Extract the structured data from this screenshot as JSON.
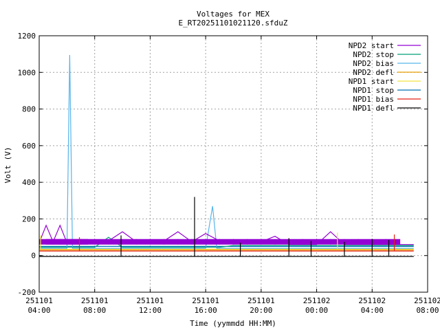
{
  "chart_data": {
    "type": "line",
    "title": "Voltages for MEX",
    "subtitle": "E_RT20251101021120.sfduZ",
    "xlabel": "Time (yymmdd HH:MM)",
    "ylabel": "Volt (V)",
    "ylim": [
      -200,
      1200
    ],
    "yticks": [
      "-200",
      "0",
      "200",
      "400",
      "600",
      "800",
      "1000",
      "1200"
    ],
    "xticks": [
      {
        "date": "251101",
        "time": "04:00"
      },
      {
        "date": "251101",
        "time": "08:00"
      },
      {
        "date": "251101",
        "time": "12:00"
      },
      {
        "date": "251101",
        "time": "16:00"
      },
      {
        "date": "251101",
        "time": "20:00"
      },
      {
        "date": "251102",
        "time": "00:00"
      },
      {
        "date": "251102",
        "time": "04:00"
      },
      {
        "date": "251102",
        "time": "08:00"
      }
    ],
    "xlim_hours": [
      0,
      28
    ],
    "grid": true,
    "legend_position": "top-right",
    "series": [
      {
        "name": "NPD2 start",
        "color": "#9400d3",
        "x_hours": [
          0,
          0.5,
          1,
          1.5,
          2,
          2.5,
          3,
          4,
          5,
          6,
          7,
          8,
          9,
          10,
          11,
          12,
          13,
          14,
          15,
          16,
          17,
          18,
          19,
          20,
          21,
          22,
          23,
          24,
          25,
          26,
          27,
          28,
          29
        ],
        "y": [
          70,
          165,
          75,
          165,
          70,
          75,
          70,
          72,
          80,
          130,
          75,
          75,
          80,
          130,
          75,
          120,
          80,
          75,
          75,
          75,
          105,
          60,
          60,
          60,
          130,
          60,
          60,
          60,
          60,
          60,
          60,
          60,
          60
        ]
      },
      {
        "name": "NPD2 stop",
        "color": "#009e73",
        "x_hours": [
          0,
          1,
          2,
          3,
          4,
          5,
          6,
          7,
          8,
          9,
          10,
          11,
          12,
          13,
          14,
          15,
          16,
          17,
          18,
          19,
          20,
          21,
          22,
          23,
          24,
          25,
          26,
          27,
          28,
          29
        ],
        "y": [
          45,
          45,
          45,
          45,
          45,
          100,
          45,
          45,
          45,
          45,
          45,
          45,
          45,
          45,
          55,
          55,
          55,
          55,
          55,
          55,
          55,
          55,
          55,
          55,
          55,
          55,
          55,
          55,
          55,
          55
        ]
      },
      {
        "name": "NPD2 bias",
        "color": "#56b4e9",
        "x_hours": [
          0,
          1,
          2,
          2.2,
          2.4,
          3,
          4,
          5,
          6,
          7,
          8,
          9,
          10,
          11,
          12,
          12.5,
          12.8,
          13,
          14,
          15,
          16,
          17,
          18,
          19,
          20,
          21,
          22,
          23,
          24,
          25,
          26,
          27,
          28,
          29
        ],
        "y": [
          40,
          40,
          40,
          1095,
          40,
          40,
          40,
          40,
          40,
          40,
          40,
          40,
          40,
          40,
          40,
          270,
          40,
          40,
          40,
          40,
          40,
          40,
          40,
          40,
          40,
          40,
          40,
          40,
          40,
          40,
          40,
          40,
          40,
          40
        ]
      },
      {
        "name": "NPD2 defl",
        "color": "#e69f00",
        "x_hours": [
          0,
          1,
          2,
          3,
          4,
          5,
          6,
          7,
          8,
          9,
          10,
          11,
          12,
          13,
          14,
          15,
          16,
          17,
          18,
          19,
          20,
          21,
          22,
          23,
          24,
          25,
          26,
          27,
          28,
          29
        ],
        "y": [
          30,
          30,
          30,
          30,
          30,
          30,
          30,
          30,
          30,
          30,
          30,
          30,
          30,
          30,
          30,
          30,
          30,
          30,
          30,
          30,
          30,
          30,
          30,
          30,
          30,
          30,
          30,
          30,
          30,
          30
        ]
      },
      {
        "name": "NPD1 start",
        "color": "#f0e442",
        "x_hours": [
          0,
          1,
          2,
          3,
          4,
          5,
          6,
          7,
          8,
          9,
          10,
          11,
          12,
          13,
          14,
          15,
          16,
          17,
          18,
          19,
          20,
          21,
          22,
          23,
          24,
          25,
          26,
          27,
          28,
          29
        ],
        "y": [
          35,
          35,
          35,
          35,
          35,
          35,
          35,
          35,
          35,
          35,
          35,
          35,
          35,
          35,
          35,
          35,
          35,
          35,
          35,
          35,
          35,
          35,
          35,
          35,
          35,
          35,
          35,
          35,
          35,
          35
        ]
      },
      {
        "name": "NPD1 stop",
        "color": "#0072b2",
        "x_hours": [
          0,
          1,
          2,
          3,
          4,
          5,
          6,
          7,
          8,
          9,
          10,
          11,
          12,
          13,
          14,
          15,
          16,
          17,
          18,
          19,
          20,
          21,
          22,
          23,
          24,
          25,
          26,
          27,
          28,
          29
        ],
        "y": [
          50,
          50,
          50,
          50,
          50,
          50,
          50,
          50,
          50,
          50,
          50,
          50,
          50,
          50,
          50,
          50,
          50,
          50,
          50,
          50,
          50,
          50,
          50,
          50,
          50,
          50,
          50,
          50,
          50,
          50
        ]
      },
      {
        "name": "NPD1 bias",
        "color": "#e51e10",
        "x_hours": [
          0,
          1,
          2,
          3,
          4,
          5,
          6,
          7,
          8,
          9,
          10,
          11,
          12,
          13,
          14,
          15,
          16,
          17,
          18,
          19,
          20,
          21,
          22,
          23,
          24,
          25,
          26,
          27,
          28,
          29
        ],
        "y": [
          25,
          25,
          25,
          25,
          25,
          25,
          25,
          25,
          25,
          25,
          25,
          25,
          25,
          25,
          25,
          25,
          25,
          25,
          25,
          25,
          25,
          25,
          25,
          25,
          25,
          25,
          25,
          25,
          25,
          25
        ]
      },
      {
        "name": "NPD1 defl",
        "color": "#000000",
        "x_hours": [
          0,
          1,
          2,
          3,
          4,
          5,
          6,
          7,
          8,
          9,
          10,
          11,
          12,
          13,
          14,
          15,
          16,
          17,
          18,
          19,
          20,
          21,
          22,
          23,
          24,
          25,
          26,
          27,
          28,
          29
        ],
        "y": [
          -5,
          -5,
          -5,
          -5,
          -5,
          -5,
          -5,
          -5,
          -5,
          -5,
          -5,
          -5,
          -5,
          -5,
          -5,
          -5,
          -5,
          -5,
          -5,
          -5,
          -5,
          -5,
          -5,
          -5,
          -5,
          -5,
          -5,
          -5,
          -5,
          -5
        ]
      }
    ],
    "spikes": [
      {
        "series": "NPD1 defl",
        "x_hours": 5.9,
        "y_low": -5,
        "y_high": 110
      },
      {
        "series": "NPD1 defl",
        "x_hours": 11.2,
        "y_low": -5,
        "y_high": 320
      },
      {
        "series": "NPD1 defl",
        "x_hours": 14.5,
        "y_low": -5,
        "y_high": 70
      },
      {
        "series": "NPD1 defl",
        "x_hours": 18.0,
        "y_low": -5,
        "y_high": 95
      },
      {
        "series": "NPD1 defl",
        "x_hours": 19.6,
        "y_low": -5,
        "y_high": 80
      },
      {
        "series": "NPD1 defl",
        "x_hours": 22.0,
        "y_low": -5,
        "y_high": 75
      },
      {
        "series": "NPD1 defl",
        "x_hours": 24.0,
        "y_low": -5,
        "y_high": 90
      },
      {
        "series": "NPD1 defl",
        "x_hours": 25.2,
        "y_low": -5,
        "y_high": 85
      },
      {
        "series": "NPD1 bias",
        "x_hours": 2.9,
        "y_low": 25,
        "y_high": 100
      },
      {
        "series": "NPD1 bias",
        "x_hours": 25.6,
        "y_low": 25,
        "y_high": 115
      },
      {
        "series": "NPD1 start",
        "x_hours": 0.1,
        "y_low": 35,
        "y_high": 110
      },
      {
        "series": "NPD1 start",
        "x_hours": 21.5,
        "y_low": 35,
        "y_high": 125
      }
    ]
  }
}
